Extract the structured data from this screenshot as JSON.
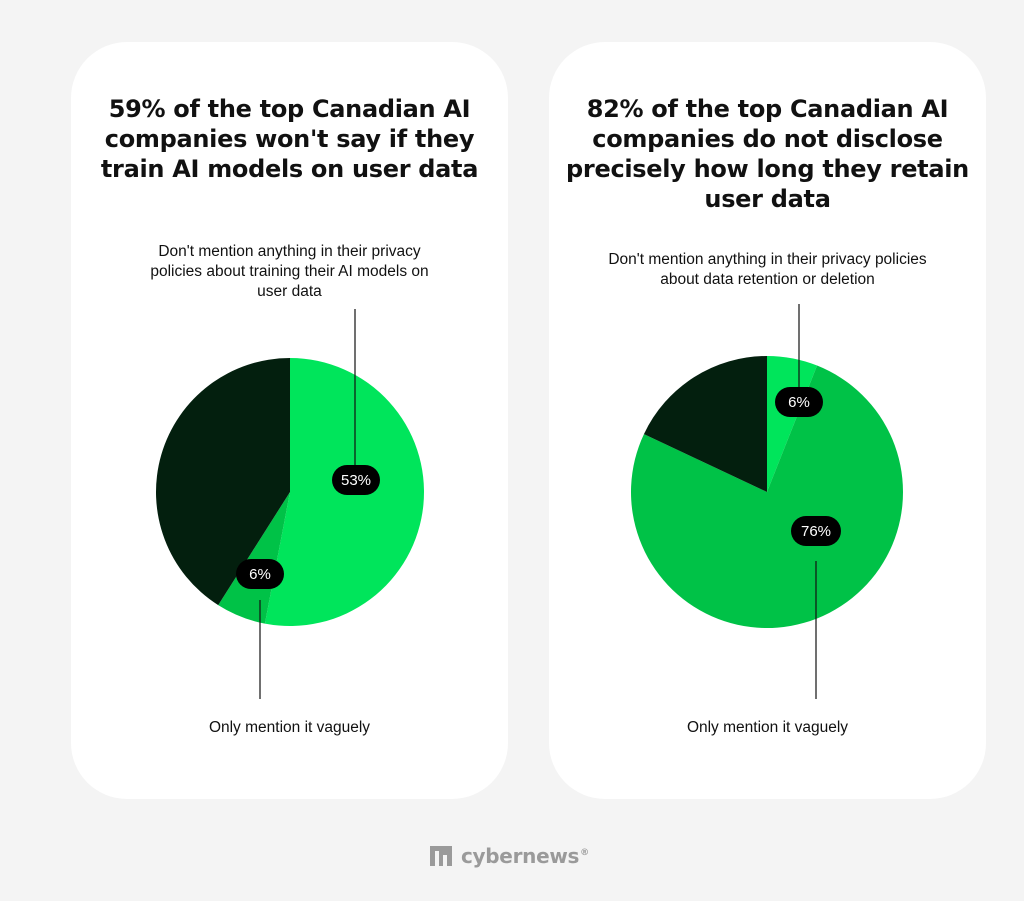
{
  "colors": {
    "background": "#f4f4f4",
    "card": "#ffffff",
    "dark_slice": "#031f0e",
    "bright_green": "#00e55b",
    "mid_green": "#00c247",
    "pill": "#000000",
    "leader_line": "#111111",
    "logo_gray": "#9a9a9a"
  },
  "logo": {
    "text": "cybernews",
    "registered": "®",
    "icon": "cybernews-logo-icon"
  },
  "chart_data": [
    {
      "type": "pie",
      "title": "59% of the top Canadian AI companies won't say if they train AI models on user data",
      "title_lines": [
        "59% of the top Canadian AI",
        "companies won't say if they",
        "train AI models on user data"
      ],
      "slices": [
        {
          "value": 53,
          "label": "53%",
          "color": "#00e55b",
          "annotation_lines": [
            "Don't mention anything in their privacy",
            "policies about training their AI models on",
            "user data"
          ]
        },
        {
          "value": 6,
          "label": "6%",
          "color": "#00c247",
          "annotation_lines": [
            "Only mention it vaguely"
          ]
        },
        {
          "value": 41,
          "label": "",
          "color": "#031f0e",
          "annotation_lines": []
        }
      ],
      "start_angle_deg": 0,
      "direction": "clockwise"
    },
    {
      "type": "pie",
      "title": "82% of the top Canadian AI companies do not disclose precisely how long they retain user data",
      "title_lines": [
        "82% of the top Canadian AI",
        "companies do not disclose",
        "precisely how long they retain",
        "user data"
      ],
      "slices": [
        {
          "value": 6,
          "label": "6%",
          "color": "#00e55b",
          "annotation_lines": [
            "Don't mention anything in their privacy policies",
            "about data retention or deletion"
          ]
        },
        {
          "value": 76,
          "label": "76%",
          "color": "#00c247",
          "annotation_lines": [
            "Only mention it vaguely"
          ]
        },
        {
          "value": 18,
          "label": "",
          "color": "#031f0e",
          "annotation_lines": []
        }
      ],
      "start_angle_deg": 0,
      "direction": "clockwise"
    }
  ]
}
